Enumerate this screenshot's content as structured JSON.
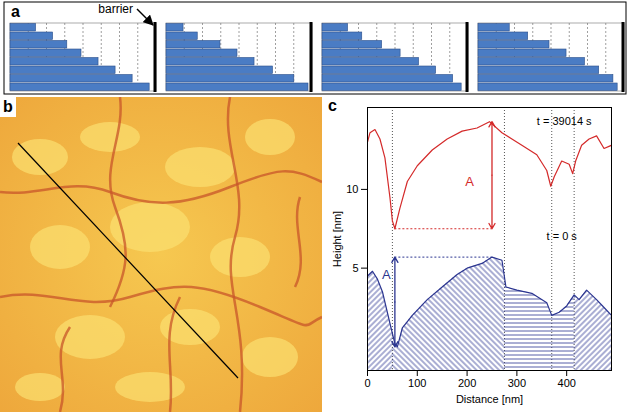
{
  "panel_a": {
    "label": "a",
    "annotation": "barrier",
    "frames": [
      [
        0.18,
        0.3,
        0.4,
        0.5,
        0.62,
        0.74,
        0.86,
        0.98
      ],
      [
        0.12,
        0.22,
        0.38,
        0.5,
        0.62,
        0.75,
        0.9,
        1.0
      ],
      [
        0.18,
        0.28,
        0.42,
        0.55,
        0.68,
        0.8,
        0.92,
        0.98
      ],
      [
        0.22,
        0.35,
        0.5,
        0.62,
        0.75,
        0.85,
        0.95,
        0.98
      ]
    ]
  },
  "panel_b": {
    "label": "b"
  },
  "chart_data": {
    "label": "c",
    "type": "line",
    "xlabel": "Distance [nm]",
    "ylabel": "Height [nm]",
    "xlim": [
      0,
      490
    ],
    "ylim": [
      -1.5,
      15.2
    ],
    "xticks": [
      0,
      100,
      200,
      300,
      400
    ],
    "yticks": [
      5,
      10
    ],
    "grain_boundaries": [
      50,
      275,
      370,
      415
    ],
    "series": [
      {
        "name": "t = 39014 s",
        "type": "line",
        "color": "#d42a2a",
        "label_x": 395,
        "label_y": 14.3,
        "x": [
          0,
          5,
          15,
          25,
          35,
          45,
          50,
          55,
          65,
          80,
          100,
          130,
          160,
          190,
          220,
          245,
          270,
          290,
          310,
          340,
          360,
          368,
          375,
          390,
          405,
          412,
          418,
          430,
          445,
          460,
          475,
          490
        ],
        "values": [
          13.0,
          13.6,
          13.8,
          13.2,
          12.0,
          9.5,
          8.0,
          7.5,
          8.8,
          10.5,
          11.5,
          12.5,
          13.2,
          13.7,
          13.9,
          14.3,
          13.6,
          13.2,
          12.8,
          12.2,
          11.2,
          10.2,
          10.8,
          11.8,
          11.6,
          11.0,
          11.8,
          12.8,
          13.2,
          13.4,
          12.6,
          12.8
        ],
        "measure": {
          "label": "A",
          "label_x": 205,
          "label_y": 10.5,
          "arrow_x": 250,
          "arrow_from": 7.5,
          "arrow_to": 14.3,
          "guide_x1": 55,
          "guide_x2": 250,
          "guide_y": 7.5
        }
      },
      {
        "name": "t = 0 s",
        "type": "area",
        "color": "#2b3590",
        "label_x": 390,
        "label_y": 7.0,
        "x": [
          0,
          10,
          20,
          30,
          45,
          55,
          60,
          70,
          90,
          120,
          150,
          180,
          200,
          230,
          250,
          270,
          278,
          300,
          330,
          360,
          370,
          385,
          400,
          415,
          425,
          440,
          460,
          475,
          490
        ],
        "values": [
          4.5,
          4.8,
          4.3,
          3.5,
          1.5,
          0.2,
          0.0,
          1.2,
          2.0,
          3.0,
          3.8,
          4.6,
          5.0,
          5.3,
          5.7,
          5.5,
          3.8,
          3.6,
          3.4,
          2.8,
          2.0,
          2.2,
          2.6,
          3.3,
          3.0,
          3.6,
          3.0,
          2.5,
          2.0
        ],
        "measure": {
          "label": "A",
          "label_x": 38,
          "label_y": 4.6,
          "arrow_x": 55,
          "arrow_from": 0,
          "arrow_to": 5.7,
          "guide_x1": 55,
          "guide_x2": 250,
          "guide_y": 5.7
        }
      }
    ]
  }
}
